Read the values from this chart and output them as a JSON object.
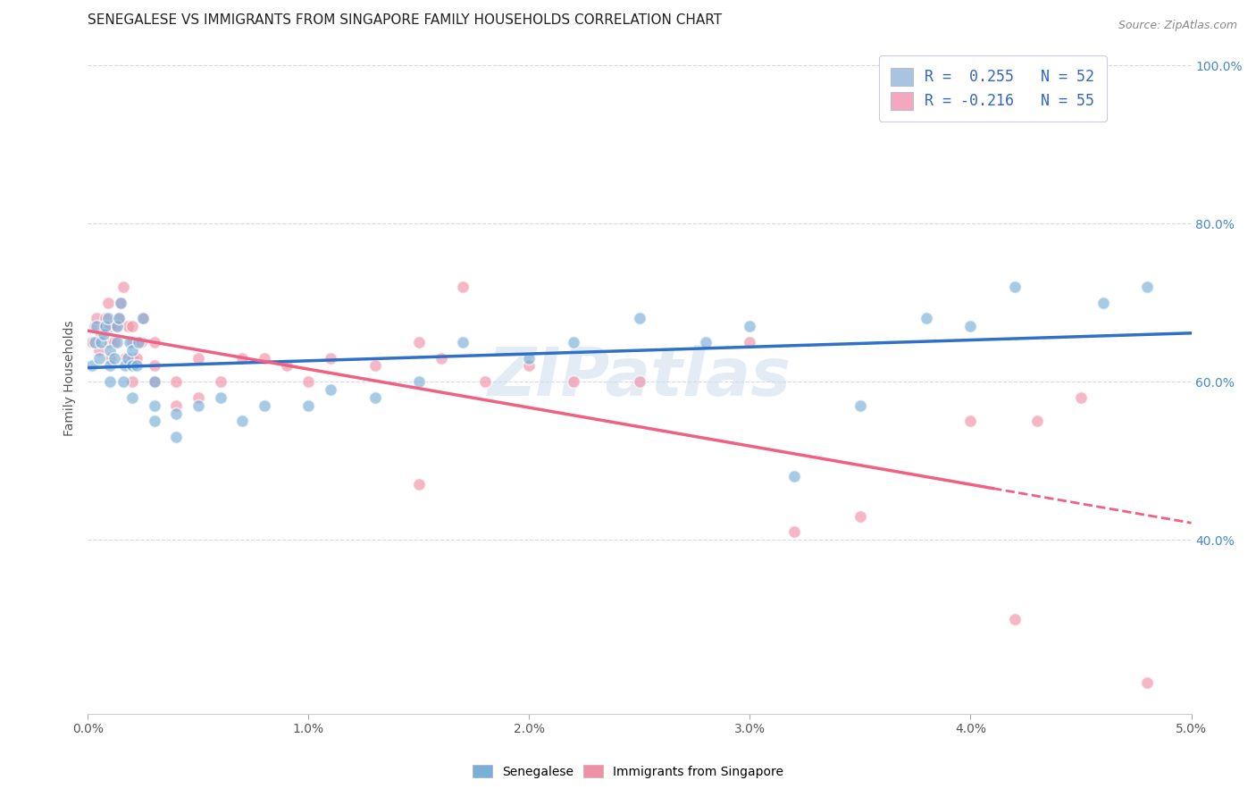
{
  "title": "SENEGALESE VS IMMIGRANTS FROM SINGAPORE FAMILY HOUSEHOLDS CORRELATION CHART",
  "source": "Source: ZipAtlas.com",
  "ylabel": "Family Households",
  "ylabel_right_ticks": [
    "40.0%",
    "60.0%",
    "80.0%",
    "100.0%"
  ],
  "ylabel_right_values": [
    0.4,
    0.6,
    0.8,
    1.0
  ],
  "legend_label1": "R =  0.255   N = 52",
  "legend_label2": "R = -0.216   N = 55",
  "legend_color1": "#a8c4e0",
  "legend_color2": "#f4a8c0",
  "senegalese_color": "#7ab0d8",
  "singapore_color": "#f090a8",
  "trendline1_color": "#3070c8",
  "trendline2_color": "#f06080",
  "xlim": [
    0.0,
    0.05
  ],
  "ylim": [
    0.18,
    1.03
  ],
  "background_color": "#ffffff",
  "watermark": "ZIPatlas",
  "senegalese_x": [
    0.0002,
    0.0003,
    0.0004,
    0.0005,
    0.0006,
    0.0007,
    0.0008,
    0.0009,
    0.001,
    0.001,
    0.001,
    0.0012,
    0.0013,
    0.0013,
    0.0014,
    0.0015,
    0.0016,
    0.0017,
    0.0018,
    0.0019,
    0.002,
    0.002,
    0.002,
    0.0022,
    0.0023,
    0.0025,
    0.003,
    0.003,
    0.003,
    0.004,
    0.004,
    0.005,
    0.006,
    0.007,
    0.008,
    0.01,
    0.011,
    0.013,
    0.015,
    0.017,
    0.02,
    0.022,
    0.025,
    0.028,
    0.03,
    0.032,
    0.035,
    0.038,
    0.04,
    0.042,
    0.046,
    0.048
  ],
  "senegalese_y": [
    0.62,
    0.65,
    0.67,
    0.63,
    0.65,
    0.66,
    0.67,
    0.68,
    0.6,
    0.62,
    0.64,
    0.63,
    0.65,
    0.67,
    0.68,
    0.7,
    0.6,
    0.62,
    0.63,
    0.65,
    0.58,
    0.62,
    0.64,
    0.62,
    0.65,
    0.68,
    0.55,
    0.57,
    0.6,
    0.53,
    0.56,
    0.57,
    0.58,
    0.55,
    0.57,
    0.57,
    0.59,
    0.58,
    0.6,
    0.65,
    0.63,
    0.65,
    0.68,
    0.65,
    0.67,
    0.48,
    0.57,
    0.68,
    0.67,
    0.72,
    0.7,
    0.72
  ],
  "singapore_x": [
    0.0002,
    0.0003,
    0.0004,
    0.0005,
    0.0006,
    0.0007,
    0.0008,
    0.0009,
    0.001,
    0.001,
    0.001,
    0.0012,
    0.0013,
    0.0014,
    0.0015,
    0.0016,
    0.0017,
    0.0018,
    0.002,
    0.002,
    0.002,
    0.002,
    0.0022,
    0.0024,
    0.0025,
    0.003,
    0.003,
    0.003,
    0.004,
    0.004,
    0.005,
    0.005,
    0.006,
    0.007,
    0.008,
    0.009,
    0.01,
    0.011,
    0.013,
    0.015,
    0.015,
    0.016,
    0.017,
    0.018,
    0.02,
    0.022,
    0.025,
    0.03,
    0.032,
    0.035,
    0.04,
    0.042,
    0.043,
    0.045,
    0.048
  ],
  "singapore_y": [
    0.65,
    0.67,
    0.68,
    0.64,
    0.66,
    0.67,
    0.68,
    0.7,
    0.63,
    0.65,
    0.67,
    0.65,
    0.67,
    0.68,
    0.7,
    0.72,
    0.63,
    0.67,
    0.6,
    0.63,
    0.65,
    0.67,
    0.63,
    0.65,
    0.68,
    0.6,
    0.62,
    0.65,
    0.57,
    0.6,
    0.58,
    0.63,
    0.6,
    0.63,
    0.63,
    0.62,
    0.6,
    0.63,
    0.62,
    0.65,
    0.47,
    0.63,
    0.72,
    0.6,
    0.62,
    0.6,
    0.6,
    0.65,
    0.41,
    0.43,
    0.55,
    0.3,
    0.55,
    0.58,
    0.22
  ],
  "grid_color": "#d8d8e8",
  "grid_linestyle": "--",
  "title_fontsize": 11,
  "axis_fontsize": 10,
  "xticklabels": [
    "0.0%",
    "1.0%",
    "2.0%",
    "3.0%",
    "4.0%",
    "5.0%"
  ],
  "xticks": [
    0.0,
    0.01,
    0.02,
    0.03,
    0.04,
    0.05
  ]
}
